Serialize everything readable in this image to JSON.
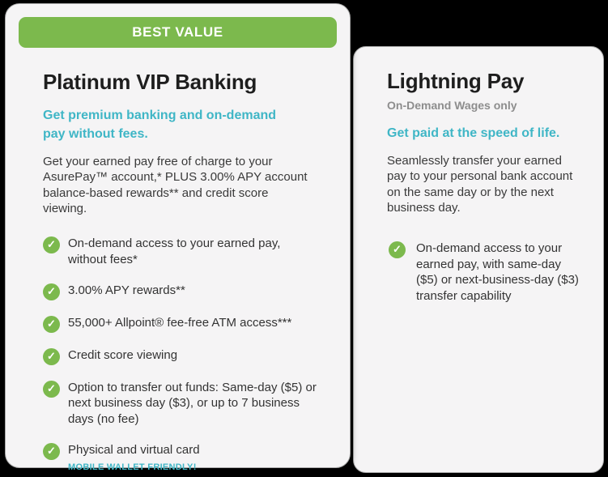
{
  "colors": {
    "page_background": "#000000",
    "card_background": "#f5f4f5",
    "accent_green": "#7cb94d",
    "accent_teal": "#3fb6c6",
    "badge_text": "#ffffff",
    "subtitle_gray": "#8d8d8d",
    "body_text": "#3a3a3a"
  },
  "icons": {
    "check": "✓"
  },
  "left_card": {
    "badge_label": "BEST VALUE",
    "title": "Platinum VIP Banking",
    "tagline": "Get premium banking and on-demand pay without fees.",
    "description": "Get your earned pay free of charge to your AsurePay™ account,* PLUS 3.00% APY account balance-based rewards** and credit score viewing.",
    "features": [
      {
        "text": "On-demand access to your earned pay, without fees*"
      },
      {
        "text": "3.00% APY rewards**"
      },
      {
        "text": "55,000+ Allpoint® fee-free ATM access***"
      },
      {
        "text": "Credit score viewing"
      },
      {
        "text": "Option to transfer out funds: Same-day ($5) or next business day ($3), or up to 7 business days (no fee)"
      },
      {
        "text": "Physical and virtual card",
        "note": "MOBILE WALLET FRIENDLY!"
      }
    ]
  },
  "right_card": {
    "title": "Lightning Pay",
    "subtitle": "On-Demand Wages only",
    "tagline": "Get paid at the speed of life.",
    "description": "Seamlessly transfer your earned pay to your personal bank account on the same day or by the next business day.",
    "features": [
      {
        "text": "On-demand access to your earned pay, with same-day ($5) or next-business-day ($3) transfer capability"
      }
    ]
  }
}
